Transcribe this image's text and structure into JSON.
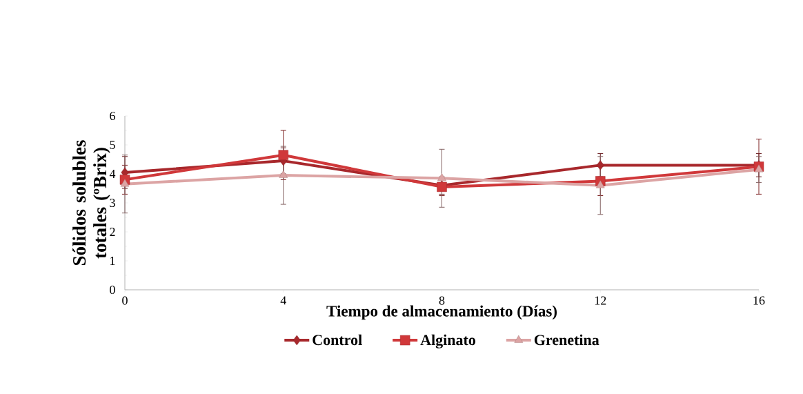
{
  "chart_data": {
    "type": "line",
    "xlabel": "Tiempo de almacenamiento (Días)",
    "ylabel": "Sólidos solubles totales (ºBrix)",
    "x": [
      0,
      4,
      8,
      12,
      16
    ],
    "xlim": [
      0,
      16
    ],
    "xticks": [
      0,
      4,
      8,
      12,
      16
    ],
    "ylim": [
      0,
      6
    ],
    "yticks": [
      0,
      1,
      2,
      3,
      4,
      5,
      6
    ],
    "grid": false,
    "legend": "bottom",
    "line_style": "solid",
    "series": [
      {
        "name": "Control",
        "color": "#a8282c",
        "marker": "diamond",
        "values": [
          4.05,
          4.45,
          3.6,
          4.3,
          4.3
        ],
        "errors": [
          0.55,
          0.45,
          0.3,
          0.4,
          0.4
        ]
      },
      {
        "name": "Alginato",
        "color": "#d0383a",
        "marker": "square",
        "values": [
          3.8,
          4.65,
          3.55,
          3.75,
          4.25
        ],
        "errors": [
          0.5,
          0.85,
          0.3,
          0.5,
          0.95
        ]
      },
      {
        "name": "Grenetina",
        "color": "#dca4a4",
        "marker": "triangle",
        "values": [
          3.65,
          3.95,
          3.85,
          3.6,
          4.15
        ],
        "errors": [
          1.0,
          1.0,
          1.0,
          1.0,
          0.45
        ]
      }
    ]
  }
}
